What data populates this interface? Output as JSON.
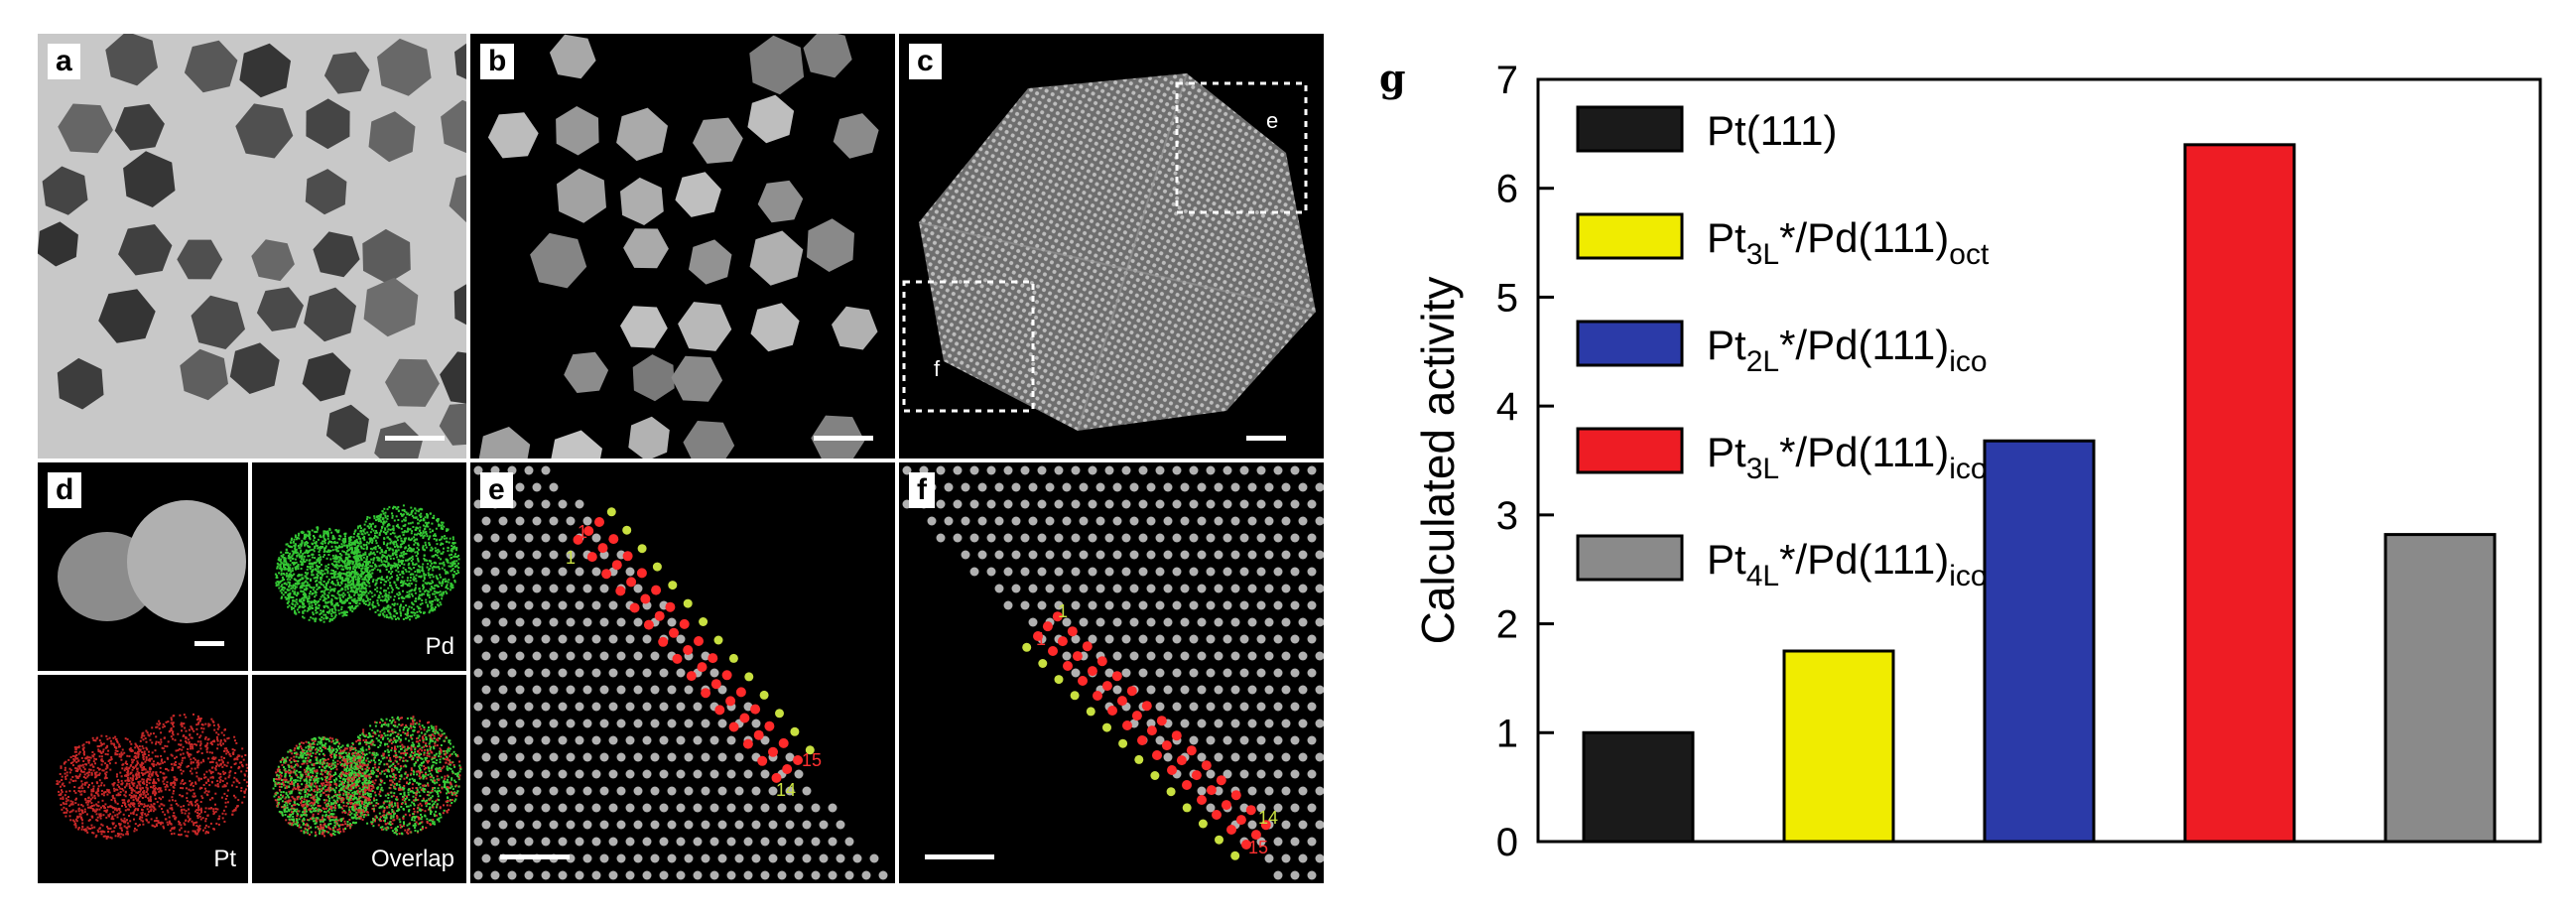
{
  "figure": {
    "panel_labels": {
      "a": "a",
      "b": "b",
      "c": "c",
      "d": "d",
      "e": "e",
      "f": "f",
      "g": "g"
    },
    "box_labels": {
      "e": "e",
      "f": "f"
    },
    "eds_maps": {
      "pd": "Pd",
      "pt": "Pt",
      "overlap": "Overlap"
    },
    "atom_labels": {
      "e_red_start": "1",
      "e_green_start": "1",
      "e_red_end": "15",
      "e_green_end": "14",
      "f_green_start": "1",
      "f_red_start": "1",
      "f_green_end": "14",
      "f_red_end": "15"
    }
  },
  "chart_data": {
    "type": "bar",
    "categories": [
      "Pt(111)",
      "Pt3L*/Pd(111)oct",
      "Pt2L*/Pd(111)ico",
      "Pt3L*/Pd(111)ico",
      "Pt4L*/Pd(111)ico"
    ],
    "values": [
      1.0,
      1.75,
      3.68,
      6.4,
      2.82
    ],
    "colors": [
      "#1a1a1a",
      "#f0ec00",
      "#2b3aa8",
      "#ee1c24",
      "#8a8a8a"
    ],
    "ylabel": "Calculated activity",
    "xlabel": "",
    "ylim": [
      0,
      7
    ],
    "yticks": [
      0,
      1,
      2,
      3,
      4,
      5,
      6,
      7
    ],
    "legend": {
      "placement": "top-left",
      "entries": [
        {
          "base": "Pt",
          "sub1": "",
          "rest": "(111)",
          "sub2": ""
        },
        {
          "base": "Pt",
          "sub1": "3L",
          "rest": "*/Pd(111)",
          "sub2": "oct"
        },
        {
          "base": "Pt",
          "sub1": "2L",
          "rest": "*/Pd(111)",
          "sub2": "ico"
        },
        {
          "base": "Pt",
          "sub1": "3L",
          "rest": "*/Pd(111)",
          "sub2": "ico"
        },
        {
          "base": "Pt",
          "sub1": "4L",
          "rest": "*/Pd(111)",
          "sub2": "ico"
        }
      ]
    },
    "grid": false
  }
}
